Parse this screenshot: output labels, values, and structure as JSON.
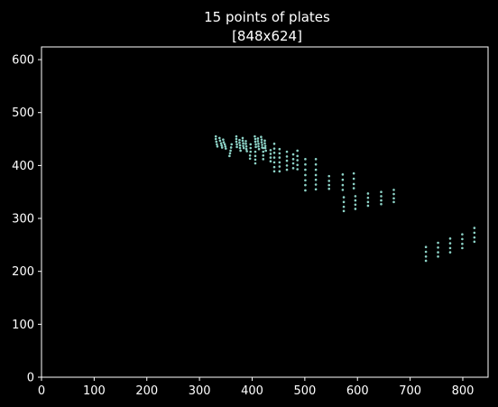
{
  "chart_data": {
    "type": "scatter",
    "title_lines": [
      "15 points of plates",
      "[848x624]"
    ],
    "xlabel": "",
    "ylabel": "",
    "xlim": [
      0,
      848
    ],
    "ylim": [
      0,
      624
    ],
    "xticks": [
      0,
      100,
      200,
      300,
      400,
      500,
      600,
      700,
      800
    ],
    "yticks": [
      0,
      100,
      200,
      300,
      400,
      500,
      600
    ],
    "grid": false,
    "legend": false,
    "background_color": "#000000",
    "axes_color": "#ffffff",
    "marker_color": "#8dd3c7",
    "points": [
      [
        331,
        455
      ],
      [
        331,
        450
      ],
      [
        332,
        445
      ],
      [
        333,
        440
      ],
      [
        334,
        436
      ],
      [
        338,
        452
      ],
      [
        339,
        447
      ],
      [
        341,
        442
      ],
      [
        342,
        438
      ],
      [
        343,
        434
      ],
      [
        345,
        449
      ],
      [
        346,
        444
      ],
      [
        348,
        440
      ],
      [
        349,
        436
      ],
      [
        350,
        432
      ],
      [
        361,
        440
      ],
      [
        360,
        434
      ],
      [
        359,
        428
      ],
      [
        358,
        423
      ],
      [
        357,
        418
      ],
      [
        370,
        455
      ],
      [
        370,
        450
      ],
      [
        370,
        445
      ],
      [
        371,
        440
      ],
      [
        371,
        435
      ],
      [
        376,
        448
      ],
      [
        376,
        443
      ],
      [
        377,
        438
      ],
      [
        377,
        433
      ],
      [
        378,
        428
      ],
      [
        382,
        452
      ],
      [
        382,
        447
      ],
      [
        383,
        442
      ],
      [
        383,
        437
      ],
      [
        384,
        433
      ],
      [
        388,
        446
      ],
      [
        388,
        441
      ],
      [
        389,
        436
      ],
      [
        389,
        431
      ],
      [
        390,
        427
      ],
      [
        397,
        440
      ],
      [
        397,
        433
      ],
      [
        397,
        426
      ],
      [
        396,
        419
      ],
      [
        396,
        413
      ],
      [
        405,
        455
      ],
      [
        406,
        450
      ],
      [
        406,
        445
      ],
      [
        407,
        440
      ],
      [
        407,
        435
      ],
      [
        411,
        451
      ],
      [
        411,
        446
      ],
      [
        412,
        441
      ],
      [
        412,
        436
      ],
      [
        413,
        431
      ],
      [
        417,
        454
      ],
      [
        418,
        449
      ],
      [
        418,
        444
      ],
      [
        419,
        439
      ],
      [
        419,
        434
      ],
      [
        424,
        447
      ],
      [
        424,
        442
      ],
      [
        425,
        437
      ],
      [
        425,
        433
      ],
      [
        426,
        428
      ],
      [
        406,
        426
      ],
      [
        406,
        418
      ],
      [
        406,
        411
      ],
      [
        406,
        404
      ],
      [
        421,
        433
      ],
      [
        421,
        426
      ],
      [
        421,
        419
      ],
      [
        421,
        412
      ],
      [
        435,
        429
      ],
      [
        435,
        422
      ],
      [
        435,
        415
      ],
      [
        435,
        408
      ],
      [
        442,
        441
      ],
      [
        442,
        432
      ],
      [
        442,
        424
      ],
      [
        442,
        415
      ],
      [
        442,
        406
      ],
      [
        442,
        397
      ],
      [
        442,
        389
      ],
      [
        452,
        431
      ],
      [
        452,
        423
      ],
      [
        452,
        415
      ],
      [
        452,
        406
      ],
      [
        452,
        398
      ],
      [
        452,
        389
      ],
      [
        466,
        426
      ],
      [
        466,
        417
      ],
      [
        466,
        409
      ],
      [
        466,
        400
      ],
      [
        466,
        392
      ],
      [
        478,
        421
      ],
      [
        478,
        412
      ],
      [
        478,
        404
      ],
      [
        478,
        395
      ],
      [
        486,
        428
      ],
      [
        486,
        418
      ],
      [
        486,
        410
      ],
      [
        486,
        401
      ],
      [
        486,
        393
      ],
      [
        501,
        412
      ],
      [
        501,
        402
      ],
      [
        501,
        392
      ],
      [
        501,
        382
      ],
      [
        501,
        372
      ],
      [
        501,
        363
      ],
      [
        501,
        353
      ],
      [
        521,
        412
      ],
      [
        521,
        402
      ],
      [
        521,
        392
      ],
      [
        521,
        382
      ],
      [
        521,
        373
      ],
      [
        521,
        364
      ],
      [
        521,
        355
      ],
      [
        546,
        380
      ],
      [
        546,
        371
      ],
      [
        546,
        363
      ],
      [
        546,
        356
      ],
      [
        572,
        383
      ],
      [
        572,
        373
      ],
      [
        572,
        363
      ],
      [
        572,
        354
      ],
      [
        574,
        340
      ],
      [
        574,
        331
      ],
      [
        574,
        322
      ],
      [
        574,
        314
      ],
      [
        593,
        385
      ],
      [
        593,
        375
      ],
      [
        593,
        365
      ],
      [
        593,
        357
      ],
      [
        596,
        342
      ],
      [
        596,
        334
      ],
      [
        596,
        326
      ],
      [
        596,
        318
      ],
      [
        620,
        347
      ],
      [
        620,
        339
      ],
      [
        620,
        331
      ],
      [
        620,
        324
      ],
      [
        645,
        350
      ],
      [
        645,
        342
      ],
      [
        645,
        334
      ],
      [
        645,
        327
      ],
      [
        669,
        354
      ],
      [
        669,
        346
      ],
      [
        669,
        338
      ],
      [
        669,
        331
      ],
      [
        730,
        246
      ],
      [
        730,
        237
      ],
      [
        730,
        228
      ],
      [
        730,
        220
      ],
      [
        753,
        254
      ],
      [
        753,
        245
      ],
      [
        753,
        236
      ],
      [
        753,
        228
      ],
      [
        776,
        262
      ],
      [
        776,
        253
      ],
      [
        776,
        244
      ],
      [
        776,
        236
      ],
      [
        799,
        270
      ],
      [
        799,
        261
      ],
      [
        799,
        252
      ],
      [
        799,
        244
      ],
      [
        822,
        282
      ],
      [
        822,
        273
      ],
      [
        822,
        264
      ],
      [
        822,
        256
      ]
    ]
  }
}
